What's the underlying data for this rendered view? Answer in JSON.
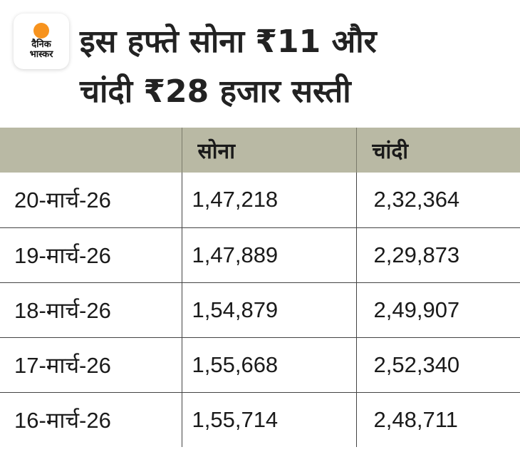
{
  "logo": {
    "line1": "दैनिक",
    "line2": "भास्कर",
    "brand_color": "#f7931e"
  },
  "title": {
    "line1": "इस हफ्ते सोना ₹11 और",
    "line2": "चांदी ₹28 हजार सस्ती"
  },
  "table": {
    "headers": [
      "",
      "सोना",
      "चांदी"
    ],
    "header_bg": "#b9b9a4",
    "rows": [
      {
        "date": "20-मार्च-26",
        "gold": "1,47,218",
        "silver": "2,32,364"
      },
      {
        "date": "19-मार्च-26",
        "gold": "1,47,889",
        "silver": "2,29,873"
      },
      {
        "date": "18-मार्च-26",
        "gold": "1,54,879",
        "silver": "2,49,907"
      },
      {
        "date": "17-मार्च-26",
        "gold": "1,55,668",
        "silver": "2,52,340"
      },
      {
        "date": "16-मार्च-26",
        "gold": "1,55,714",
        "silver": "2,48,711"
      }
    ]
  }
}
